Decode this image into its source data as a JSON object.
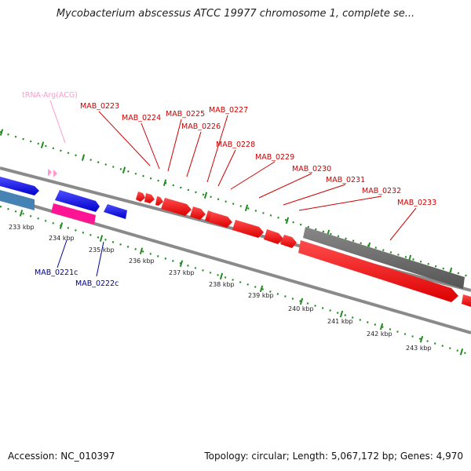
{
  "title": "Mycobacterium abscessus ATCC 19977 chromosome 1, complete se...",
  "accession": "Accession: NC_010397",
  "summary": "Topology: circular; Length: 5,067,172 bp; Genes: 4,970",
  "scale_labels": [
    "233 kbp",
    "234 kbp",
    "235 kbp",
    "236 kbp",
    "237 kbp",
    "238 kbp",
    "239 kbp",
    "240 kbp",
    "241 kbp",
    "242 kbp",
    "243 kbp"
  ],
  "top_labels": [
    "tRNA-Arg(ACG)",
    "MAB_0223",
    "MAB_0224",
    "MAB_0225",
    "MAB_0226",
    "MAB_0227",
    "MAB_0228",
    "MAB_0229",
    "MAB_0230",
    "MAB_0231",
    "MAB_0232",
    "MAB_0233"
  ],
  "bottom_labels": [
    "MAB_0221c",
    "MAB_0222c"
  ],
  "colors": {
    "cds_forward": "#ff0000",
    "cds_reverse": "#0000ee",
    "trna": "#ff99cc",
    "pink_gene": "#ff1493",
    "gray_gene": "#666666",
    "backbone": "#888888",
    "tick_green": "#228b22",
    "label_red": "#cc0000",
    "label_blue": "#000099"
  }
}
